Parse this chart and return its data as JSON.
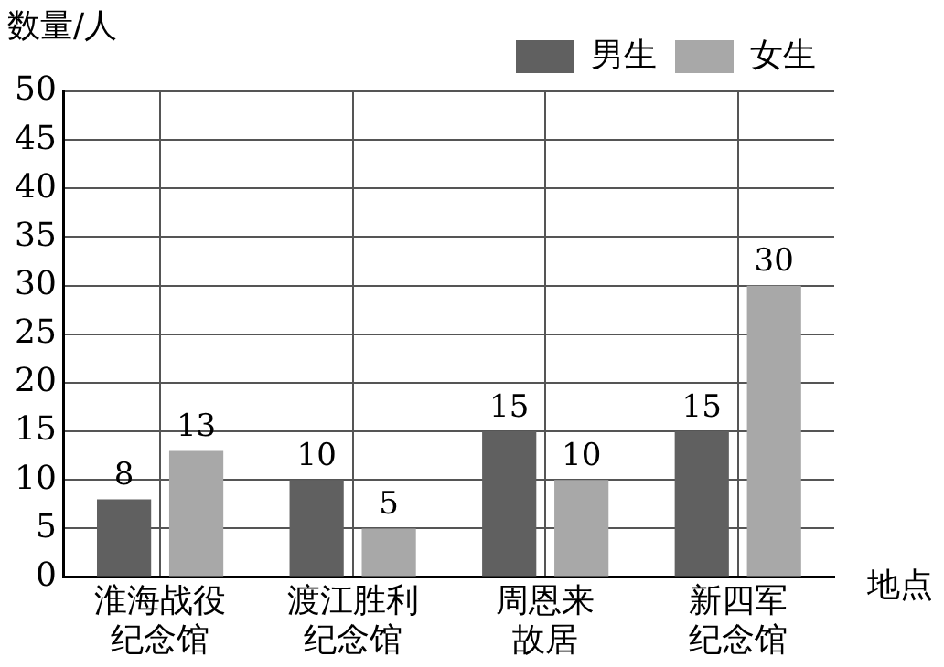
{
  "chart_data": {
    "type": "bar",
    "ylabel": "数量/人",
    "xlabel": "地点",
    "categories": [
      "淮海战役纪念馆",
      "渡江胜利纪念馆",
      "周恩来故居",
      "新四军纪念馆"
    ],
    "series": [
      {
        "name": "男生",
        "color": "#606060",
        "values": [
          8,
          10,
          15,
          15
        ]
      },
      {
        "name": "女生",
        "color": "#a8a8a8",
        "values": [
          13,
          5,
          10,
          30
        ]
      }
    ],
    "ylim": [
      0,
      50
    ],
    "yticks": [
      0,
      5,
      10,
      15,
      20,
      25,
      30,
      35,
      40,
      45,
      50
    ],
    "grid": true,
    "legend": "top right",
    "data_labels": true
  }
}
